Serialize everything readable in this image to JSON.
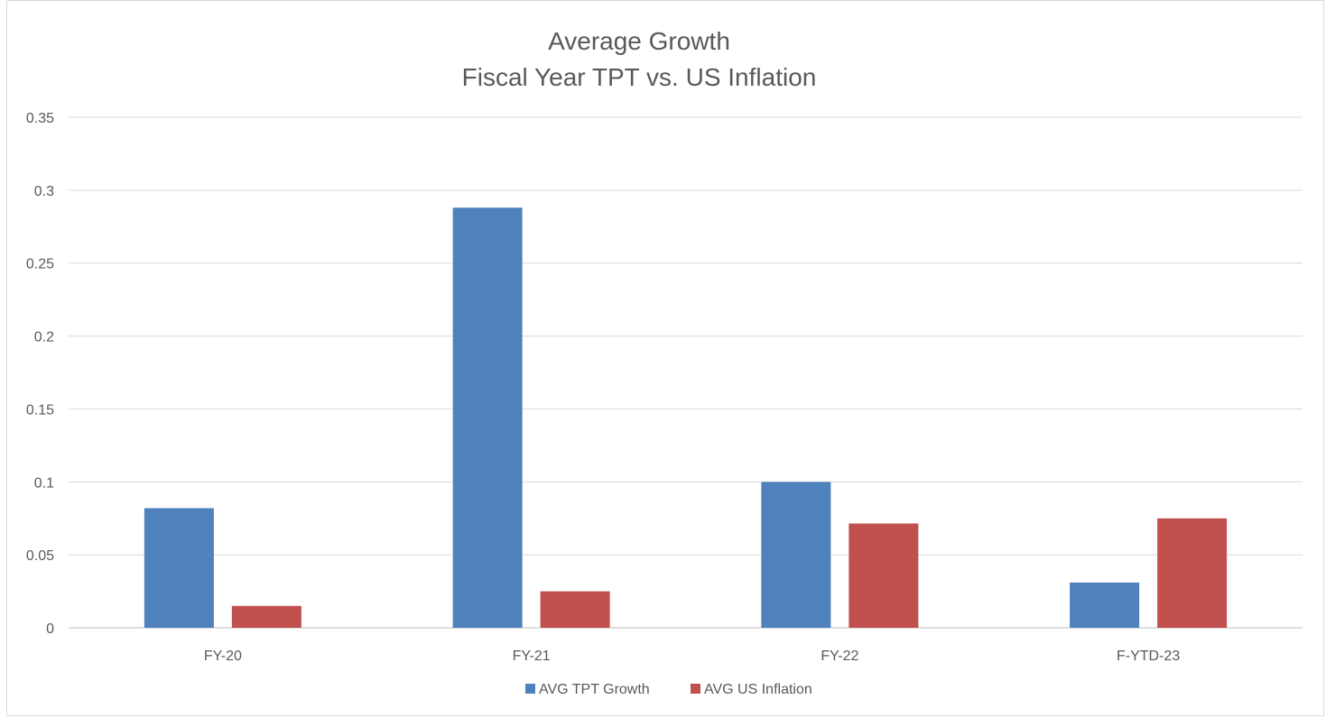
{
  "chart_data": {
    "type": "bar",
    "title": "Average Growth",
    "subtitle": "Fiscal Year TPT vs. US Inflation",
    "categories": [
      "FY-20",
      "FY-21",
      "FY-22",
      "F-YTD-23"
    ],
    "series": [
      {
        "name": "AVG TPT Growth",
        "values": [
          0.082,
          0.288,
          0.1,
          0.031
        ],
        "color": "#4f81bd"
      },
      {
        "name": "AVG US Inflation",
        "values": [
          0.015,
          0.025,
          0.0715,
          0.075
        ],
        "color": "#c0504d"
      }
    ],
    "y_ticks": [
      "0",
      "0.05",
      "0.1",
      "0.15",
      "0.2",
      "0.25",
      "0.3",
      "0.35"
    ],
    "ylim": [
      0,
      0.35
    ],
    "xlabel": "",
    "ylabel": "",
    "grid": true,
    "legend_position": "bottom"
  }
}
